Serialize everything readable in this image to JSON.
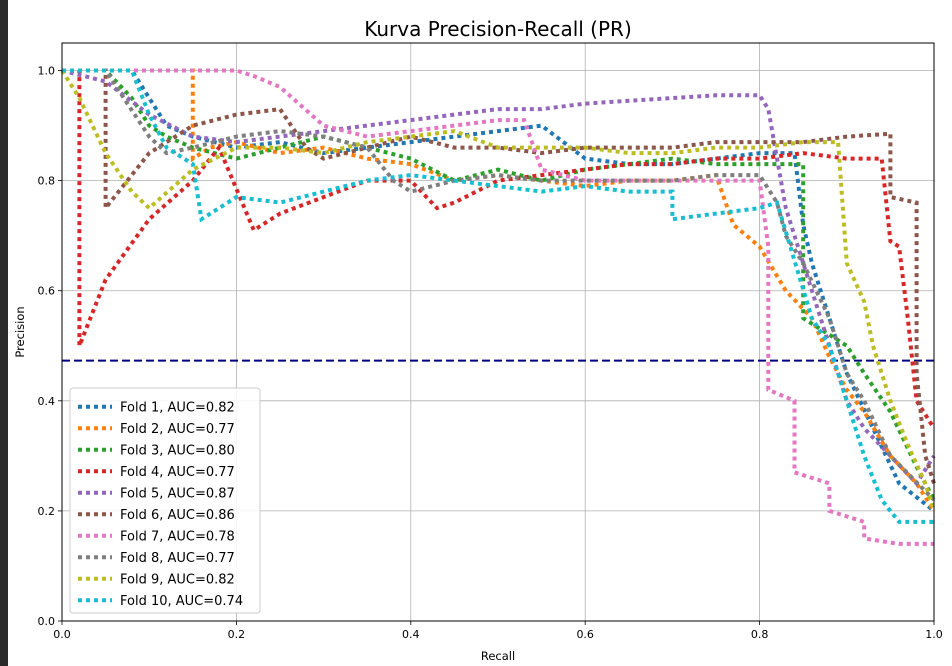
{
  "chart_data": {
    "type": "line",
    "title": "Kurva Precision-Recall (PR)",
    "xlabel": "Recall",
    "ylabel": "Precision",
    "xlim": [
      0.0,
      1.0
    ],
    "ylim": [
      0.0,
      1.05
    ],
    "xticks": [
      "0.0",
      "0.2",
      "0.4",
      "0.6",
      "0.8",
      "1.0"
    ],
    "yticks": [
      "0.0",
      "0.2",
      "0.4",
      "0.6",
      "0.8",
      "1.0"
    ],
    "grid": true,
    "legend_position": "lower-left",
    "baseline": {
      "y": 0.473,
      "color": "#000080",
      "style": "dashed"
    },
    "series": [
      {
        "name": "Fold 1, AUC=0.82",
        "color": "#1f77b4",
        "x": [
          0.0,
          0.08,
          0.1,
          0.12,
          0.15,
          0.2,
          0.25,
          0.3,
          0.35,
          0.4,
          0.45,
          0.5,
          0.55,
          0.6,
          0.65,
          0.7,
          0.75,
          0.8,
          0.84,
          0.85,
          0.86,
          0.87,
          0.88,
          0.9,
          0.93,
          0.96,
          1.0
        ],
        "y": [
          1.0,
          1.0,
          0.95,
          0.9,
          0.88,
          0.86,
          0.87,
          0.85,
          0.86,
          0.87,
          0.88,
          0.89,
          0.9,
          0.84,
          0.83,
          0.83,
          0.84,
          0.85,
          0.85,
          0.72,
          0.65,
          0.6,
          0.55,
          0.45,
          0.35,
          0.25,
          0.2
        ]
      },
      {
        "name": "Fold 2, AUC=0.77",
        "color": "#ff7f0e",
        "x": [
          0.0,
          0.15,
          0.15,
          0.17,
          0.2,
          0.25,
          0.3,
          0.35,
          0.4,
          0.45,
          0.5,
          0.55,
          0.6,
          0.65,
          0.7,
          0.75,
          0.77,
          0.8,
          0.83,
          0.86,
          0.88,
          0.9,
          0.92,
          0.95,
          0.98,
          1.0
        ],
        "y": [
          1.0,
          1.0,
          0.84,
          0.86,
          0.87,
          0.85,
          0.86,
          0.84,
          0.83,
          0.8,
          0.81,
          0.8,
          0.79,
          0.8,
          0.8,
          0.81,
          0.72,
          0.68,
          0.6,
          0.55,
          0.48,
          0.42,
          0.38,
          0.3,
          0.25,
          0.2
        ]
      },
      {
        "name": "Fold 3, AUC=0.80",
        "color": "#2ca02c",
        "x": [
          0.0,
          0.05,
          0.08,
          0.1,
          0.12,
          0.15,
          0.2,
          0.25,
          0.3,
          0.35,
          0.4,
          0.45,
          0.5,
          0.55,
          0.6,
          0.65,
          0.7,
          0.75,
          0.8,
          0.85,
          0.85,
          0.87,
          0.9,
          0.92,
          0.95,
          0.98,
          1.0
        ],
        "y": [
          1.0,
          1.0,
          0.95,
          0.9,
          0.88,
          0.86,
          0.84,
          0.86,
          0.88,
          0.86,
          0.84,
          0.8,
          0.82,
          0.8,
          0.82,
          0.83,
          0.84,
          0.83,
          0.83,
          0.83,
          0.55,
          0.53,
          0.5,
          0.45,
          0.38,
          0.28,
          0.22
        ]
      },
      {
        "name": "Fold 4, AUC=0.77",
        "color": "#d62728",
        "x": [
          0.0,
          0.02,
          0.02,
          0.05,
          0.1,
          0.15,
          0.18,
          0.22,
          0.25,
          0.3,
          0.35,
          0.4,
          0.43,
          0.45,
          0.5,
          0.55,
          0.6,
          0.65,
          0.7,
          0.75,
          0.8,
          0.85,
          0.9,
          0.94,
          0.95,
          0.96,
          0.97,
          0.98,
          1.0
        ],
        "y": [
          1.0,
          1.0,
          0.5,
          0.62,
          0.73,
          0.8,
          0.86,
          0.71,
          0.74,
          0.77,
          0.8,
          0.8,
          0.75,
          0.76,
          0.8,
          0.81,
          0.82,
          0.83,
          0.83,
          0.84,
          0.84,
          0.85,
          0.84,
          0.84,
          0.69,
          0.68,
          0.55,
          0.4,
          0.35
        ]
      },
      {
        "name": "Fold 5, AUC=0.87",
        "color": "#9467bd",
        "x": [
          0.0,
          0.05,
          0.1,
          0.15,
          0.2,
          0.25,
          0.3,
          0.35,
          0.4,
          0.45,
          0.5,
          0.55,
          0.6,
          0.65,
          0.7,
          0.75,
          0.8,
          0.81,
          0.83,
          0.86,
          0.88,
          0.9,
          0.92,
          0.95,
          0.98,
          1.0
        ],
        "y": [
          1.0,
          0.98,
          0.92,
          0.88,
          0.87,
          0.88,
          0.89,
          0.9,
          0.91,
          0.92,
          0.93,
          0.93,
          0.94,
          0.945,
          0.95,
          0.955,
          0.955,
          0.93,
          0.75,
          0.6,
          0.5,
          0.4,
          0.35,
          0.3,
          0.25,
          0.3
        ]
      },
      {
        "name": "Fold 6, AUC=0.86",
        "color": "#8c564b",
        "x": [
          0.0,
          0.05,
          0.05,
          0.1,
          0.15,
          0.2,
          0.25,
          0.28,
          0.3,
          0.35,
          0.4,
          0.45,
          0.5,
          0.55,
          0.6,
          0.65,
          0.7,
          0.75,
          0.8,
          0.85,
          0.9,
          0.95,
          0.95,
          0.98,
          0.98,
          0.99,
          1.0
        ],
        "y": [
          1.0,
          1.0,
          0.75,
          0.85,
          0.9,
          0.92,
          0.93,
          0.86,
          0.84,
          0.86,
          0.88,
          0.86,
          0.86,
          0.85,
          0.86,
          0.86,
          0.86,
          0.87,
          0.87,
          0.87,
          0.88,
          0.885,
          0.77,
          0.76,
          0.45,
          0.3,
          0.25
        ]
      },
      {
        "name": "Fold 7, AUC=0.78",
        "color": "#e377c2",
        "x": [
          0.0,
          0.05,
          0.1,
          0.15,
          0.2,
          0.22,
          0.25,
          0.3,
          0.35,
          0.4,
          0.45,
          0.5,
          0.53,
          0.55,
          0.6,
          0.65,
          0.7,
          0.75,
          0.8,
          0.81,
          0.81,
          0.84,
          0.84,
          0.88,
          0.88,
          0.92,
          0.92,
          0.96,
          1.0
        ],
        "y": [
          1.0,
          1.0,
          1.0,
          1.0,
          1.0,
          0.99,
          0.97,
          0.9,
          0.88,
          0.89,
          0.9,
          0.91,
          0.91,
          0.82,
          0.8,
          0.8,
          0.8,
          0.8,
          0.8,
          0.68,
          0.42,
          0.4,
          0.27,
          0.25,
          0.2,
          0.18,
          0.15,
          0.14,
          0.14
        ]
      },
      {
        "name": "Fold 8, AUC=0.77",
        "color": "#7f7f7f",
        "x": [
          0.0,
          0.05,
          0.1,
          0.12,
          0.15,
          0.2,
          0.25,
          0.3,
          0.35,
          0.38,
          0.4,
          0.45,
          0.5,
          0.55,
          0.6,
          0.65,
          0.7,
          0.75,
          0.8,
          0.82,
          0.83,
          0.85,
          0.88,
          0.9,
          0.92,
          0.95,
          1.0
        ],
        "y": [
          1.0,
          1.0,
          0.88,
          0.85,
          0.86,
          0.88,
          0.89,
          0.88,
          0.86,
          0.8,
          0.78,
          0.8,
          0.81,
          0.8,
          0.8,
          0.8,
          0.8,
          0.81,
          0.81,
          0.76,
          0.7,
          0.65,
          0.55,
          0.45,
          0.4,
          0.3,
          0.22
        ]
      },
      {
        "name": "Fold 9, AUC=0.82",
        "color": "#bcbd22",
        "x": [
          0.0,
          0.02,
          0.05,
          0.08,
          0.1,
          0.15,
          0.2,
          0.25,
          0.3,
          0.35,
          0.4,
          0.45,
          0.5,
          0.55,
          0.6,
          0.65,
          0.7,
          0.75,
          0.8,
          0.85,
          0.89,
          0.9,
          0.92,
          0.93,
          0.95,
          0.97,
          0.99,
          1.0
        ],
        "y": [
          1.0,
          0.95,
          0.85,
          0.78,
          0.75,
          0.82,
          0.86,
          0.86,
          0.85,
          0.87,
          0.88,
          0.89,
          0.86,
          0.86,
          0.86,
          0.85,
          0.85,
          0.86,
          0.86,
          0.87,
          0.87,
          0.65,
          0.58,
          0.5,
          0.4,
          0.32,
          0.25,
          0.2
        ]
      },
      {
        "name": "Fold 10, AUC=0.74",
        "color": "#17becf",
        "x": [
          0.0,
          0.08,
          0.1,
          0.12,
          0.15,
          0.16,
          0.2,
          0.25,
          0.3,
          0.35,
          0.4,
          0.45,
          0.5,
          0.55,
          0.6,
          0.65,
          0.7,
          0.7,
          0.75,
          0.8,
          0.82,
          0.86,
          0.88,
          0.9,
          0.92,
          0.94,
          0.96,
          1.0
        ],
        "y": [
          1.0,
          1.0,
          0.92,
          0.86,
          0.83,
          0.73,
          0.77,
          0.76,
          0.78,
          0.8,
          0.81,
          0.8,
          0.79,
          0.78,
          0.79,
          0.78,
          0.78,
          0.73,
          0.74,
          0.75,
          0.76,
          0.55,
          0.5,
          0.4,
          0.3,
          0.22,
          0.18,
          0.18
        ]
      }
    ]
  }
}
